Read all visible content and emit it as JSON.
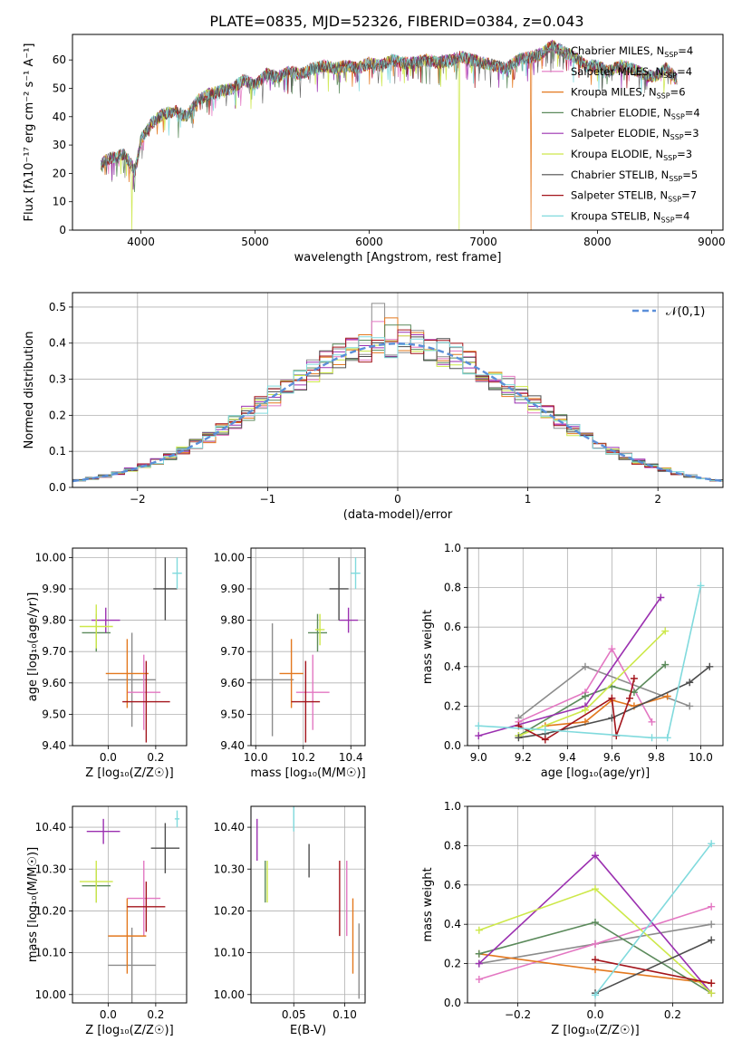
{
  "figure_title": "PLATE=0835, MJD=52326, FIBERID=0384, z=0.043",
  "models": [
    {
      "name": "Chabrier MILES",
      "nssp": "4",
      "color": "#8c8c8c"
    },
    {
      "name": "Salpeter MILES",
      "nssp": "4",
      "color": "#e377c2"
    },
    {
      "name": "Kroupa MILES",
      "nssp": "6",
      "color": "#e3781e"
    },
    {
      "name": "Chabrier ELODIE",
      "nssp": "4",
      "color": "#5b8a5b"
    },
    {
      "name": "Salpeter ELODIE",
      "nssp": "3",
      "color": "#9b30b0"
    },
    {
      "name": "Kroupa ELODIE",
      "nssp": "3",
      "color": "#cde84a"
    },
    {
      "name": "Chabrier STELIB",
      "nssp": "5",
      "color": "#4d4d4d"
    },
    {
      "name": "Salpeter STELIB",
      "nssp": "7",
      "color": "#a3141b"
    },
    {
      "name": "Kroupa STELIB",
      "nssp": "4",
      "color": "#80dadd"
    }
  ],
  "chart_data": [
    {
      "id": "spectrum",
      "type": "line",
      "xlabel": "wavelength [Angstrom, rest frame]",
      "ylabel": "Flux [fλ10⁻¹⁷ erg cm⁻² s⁻¹ A⁻¹]",
      "xlim": [
        3400,
        9100
      ],
      "ylim": [
        0,
        69
      ],
      "xticks": [
        4000,
        5000,
        6000,
        7000,
        8000,
        9000
      ],
      "yticks": [
        0,
        10,
        20,
        30,
        40,
        50,
        60
      ],
      "grid": false,
      "legend": "right",
      "x": [
        3650,
        3700,
        3800,
        3850,
        3900,
        3950,
        4000,
        4100,
        4200,
        4300,
        4400,
        4500,
        4600,
        4700,
        4800,
        4900,
        5000,
        5100,
        5200,
        5300,
        5400,
        5500,
        5600,
        5700,
        5800,
        5900,
        6000,
        6100,
        6200,
        6300,
        6400,
        6500,
        6600,
        6700,
        6800,
        6900,
        7000,
        7100,
        7200,
        7300,
        7400,
        7500,
        7600,
        7700,
        7800,
        7900,
        8000,
        8100,
        8200,
        8300,
        8400,
        8500,
        8600,
        8700
      ],
      "y": [
        23,
        25,
        26,
        27,
        24,
        21,
        32,
        38,
        41,
        42,
        40,
        46,
        48,
        49,
        50,
        53,
        51,
        55,
        54,
        56,
        55,
        57,
        58,
        57,
        58,
        57,
        59,
        58,
        60,
        59,
        59,
        60,
        59,
        60,
        61,
        60,
        59,
        58,
        57,
        60,
        61,
        62,
        65,
        63,
        61,
        58,
        58,
        56,
        58,
        57,
        55,
        54,
        57,
        53
      ],
      "dropouts": [
        {
          "x": 3920,
          "series": 5
        },
        {
          "x": 6790,
          "series": 5
        },
        {
          "x": 7420,
          "series": 2
        }
      ]
    },
    {
      "id": "residuals",
      "type": "histogram",
      "xlabel": "(data-model)/error",
      "ylabel": "Normed distribution",
      "xlim": [
        -2.5,
        2.5
      ],
      "ylim": [
        0,
        0.54
      ],
      "xticks": [
        -2,
        -1,
        0,
        1,
        2
      ],
      "yticks": [
        0.0,
        0.1,
        0.2,
        0.3,
        0.4,
        0.5
      ],
      "grid": true,
      "legend": "top-right",
      "reference_label": "𝒩(0,1)",
      "bin_edges_start": -2.5,
      "bin_width": 0.1,
      "peak_values": [
        0.51,
        0.46,
        0.47,
        0.45,
        0.43,
        0.42
      ]
    },
    {
      "id": "age_vs_Z",
      "type": "errorbar",
      "xlabel": "Z [log₁₀(Z/Z☉)]",
      "ylabel": "age  [log₁₀(age/yr)]",
      "xlim": [
        -0.15,
        0.33
      ],
      "ylim": [
        9.4,
        10.03
      ],
      "xticks": [
        0.0,
        0.2
      ],
      "yticks": [
        9.4,
        9.5,
        9.6,
        9.7,
        9.8,
        9.9,
        10.0
      ],
      "points": [
        {
          "model": 0,
          "x": 0.1,
          "y": 9.61,
          "xerr": 0.1,
          "yerr": 0.15
        },
        {
          "model": 1,
          "x": 0.15,
          "y": 9.57,
          "xerr": 0.07,
          "yerr": 0.12
        },
        {
          "model": 2,
          "x": 0.08,
          "y": 9.63,
          "xerr": 0.09,
          "yerr": 0.11
        },
        {
          "model": 3,
          "x": -0.05,
          "y": 9.76,
          "xerr": 0.06,
          "yerr": 0.06
        },
        {
          "model": 4,
          "x": -0.01,
          "y": 9.8,
          "xerr": 0.06,
          "yerr": 0.04
        },
        {
          "model": 5,
          "x": -0.05,
          "y": 9.78,
          "xerr": 0.07,
          "yerr": 0.07
        },
        {
          "model": 6,
          "x": 0.24,
          "y": 9.9,
          "xerr": 0.05,
          "yerr": 0.1
        },
        {
          "model": 7,
          "x": 0.16,
          "y": 9.54,
          "xerr": 0.1,
          "yerr": 0.13
        },
        {
          "model": 8,
          "x": 0.29,
          "y": 9.95,
          "xerr": 0.02,
          "yerr": 0.05
        }
      ]
    },
    {
      "id": "age_vs_mass",
      "type": "errorbar",
      "xlabel": "mass [log₁₀(M/M☉)]",
      "ylabel": "",
      "xlim": [
        9.98,
        10.46
      ],
      "ylim": [
        9.4,
        10.03
      ],
      "xticks": [
        10.0,
        10.2,
        10.4
      ],
      "yticks": [
        9.4,
        9.5,
        9.6,
        9.7,
        9.8,
        9.9,
        10.0
      ],
      "points": [
        {
          "model": 0,
          "x": 10.07,
          "y": 9.61,
          "xerr": 0.09,
          "yerr": 0.18
        },
        {
          "model": 1,
          "x": 10.24,
          "y": 9.57,
          "xerr": 0.07,
          "yerr": 0.12
        },
        {
          "model": 2,
          "x": 10.15,
          "y": 9.63,
          "xerr": 0.05,
          "yerr": 0.11
        },
        {
          "model": 3,
          "x": 10.26,
          "y": 9.76,
          "xerr": 0.04,
          "yerr": 0.06
        },
        {
          "model": 4,
          "x": 10.39,
          "y": 9.8,
          "xerr": 0.04,
          "yerr": 0.04
        },
        {
          "model": 5,
          "x": 10.27,
          "y": 9.77,
          "xerr": 0.02,
          "yerr": 0.05
        },
        {
          "model": 6,
          "x": 10.35,
          "y": 9.9,
          "xerr": 0.04,
          "yerr": 0.1
        },
        {
          "model": 7,
          "x": 10.21,
          "y": 9.54,
          "xerr": 0.06,
          "yerr": 0.13
        },
        {
          "model": 8,
          "x": 10.42,
          "y": 9.95,
          "xerr": 0.02,
          "yerr": 0.05
        }
      ]
    },
    {
      "id": "weight_vs_age",
      "type": "line",
      "xlabel": "age  [log₁₀(age/yr)]",
      "ylabel": "mass weight",
      "xlim": [
        8.95,
        10.1
      ],
      "ylim": [
        0,
        1
      ],
      "xticks": [
        9.0,
        9.2,
        9.4,
        9.6,
        9.8,
        10.0
      ],
      "yticks": [
        0.0,
        0.2,
        0.4,
        0.6,
        0.8,
        1.0
      ],
      "grid": true,
      "series": [
        {
          "model": 0,
          "x": [
            9.18,
            9.48,
            9.95
          ],
          "y": [
            0.14,
            0.4,
            0.2
          ]
        },
        {
          "model": 1,
          "x": [
            9.18,
            9.48,
            9.6,
            9.78
          ],
          "y": [
            0.12,
            0.27,
            0.49,
            0.12
          ]
        },
        {
          "model": 2,
          "x": [
            9.3,
            9.48,
            9.6,
            9.7,
            9.85
          ],
          "y": [
            0.1,
            0.12,
            0.23,
            0.2,
            0.25
          ]
        },
        {
          "model": 3,
          "x": [
            9.18,
            9.48,
            9.6,
            9.7,
            9.84
          ],
          "y": [
            0.05,
            0.25,
            0.3,
            0.27,
            0.41
          ]
        },
        {
          "model": 4,
          "x": [
            9.0,
            9.48,
            9.82
          ],
          "y": [
            0.05,
            0.2,
            0.75
          ]
        },
        {
          "model": 5,
          "x": [
            9.18,
            9.48,
            9.84
          ],
          "y": [
            0.05,
            0.18,
            0.58
          ]
        },
        {
          "model": 6,
          "x": [
            9.18,
            9.3,
            9.6,
            9.95,
            10.04
          ],
          "y": [
            0.04,
            0.06,
            0.14,
            0.32,
            0.4
          ]
        },
        {
          "model": 7,
          "x": [
            9.18,
            9.3,
            9.6,
            9.62,
            9.68,
            9.7
          ],
          "y": [
            0.1,
            0.03,
            0.24,
            0.05,
            0.24,
            0.34
          ]
        },
        {
          "model": 8,
          "x": [
            9.0,
            9.3,
            9.78,
            9.85,
            10.0
          ],
          "y": [
            0.1,
            0.08,
            0.04,
            0.04,
            0.81
          ]
        }
      ]
    },
    {
      "id": "mass_vs_Z",
      "type": "errorbar",
      "xlabel": "Z [log₁₀(Z/Z☉)]",
      "ylabel": "mass [log₁₀(M/M☉)]",
      "xlim": [
        -0.15,
        0.33
      ],
      "ylim": [
        9.98,
        10.45
      ],
      "xticks": [
        0.0,
        0.2
      ],
      "yticks": [
        10.0,
        10.1,
        10.2,
        10.3,
        10.4
      ],
      "points": [
        {
          "model": 0,
          "x": 0.1,
          "y": 10.07,
          "xerr": 0.1,
          "yerr": 0.09
        },
        {
          "model": 1,
          "x": 0.15,
          "y": 10.23,
          "xerr": 0.07,
          "yerr": 0.09
        },
        {
          "model": 2,
          "x": 0.08,
          "y": 10.14,
          "xerr": 0.08,
          "yerr": 0.09
        },
        {
          "model": 3,
          "x": -0.05,
          "y": 10.26,
          "xerr": 0.06,
          "yerr": 0.04
        },
        {
          "model": 4,
          "x": -0.02,
          "y": 10.39,
          "xerr": 0.07,
          "yerr": 0.03
        },
        {
          "model": 5,
          "x": -0.05,
          "y": 10.27,
          "xerr": 0.07,
          "yerr": 0.05
        },
        {
          "model": 6,
          "x": 0.24,
          "y": 10.35,
          "xerr": 0.06,
          "yerr": 0.06
        },
        {
          "model": 7,
          "x": 0.16,
          "y": 10.21,
          "xerr": 0.08,
          "yerr": 0.06
        },
        {
          "model": 8,
          "x": 0.29,
          "y": 10.42,
          "xerr": 0.01,
          "yerr": 0.02
        }
      ]
    },
    {
      "id": "mass_vs_ebv",
      "type": "errorbar",
      "xlabel": "E(B-V)",
      "ylabel": "",
      "xlim": [
        0.008,
        0.12
      ],
      "ylim": [
        9.98,
        10.45
      ],
      "xticks": [
        0.05,
        0.1
      ],
      "yticks": [
        10.0,
        10.1,
        10.2,
        10.3,
        10.4
      ],
      "points": [
        {
          "model": 0,
          "x": 0.114,
          "y": 10.08,
          "xerr": 0,
          "yerr": 0.09
        },
        {
          "model": 1,
          "x": 0.102,
          "y": 10.23,
          "xerr": 0,
          "yerr": 0.09
        },
        {
          "model": 2,
          "x": 0.108,
          "y": 10.14,
          "xerr": 0,
          "yerr": 0.09
        },
        {
          "model": 3,
          "x": 0.022,
          "y": 10.27,
          "xerr": 0,
          "yerr": 0.05
        },
        {
          "model": 4,
          "x": 0.014,
          "y": 10.37,
          "xerr": 0,
          "yerr": 0.05
        },
        {
          "model": 5,
          "x": 0.024,
          "y": 10.27,
          "xerr": 0,
          "yerr": 0.05
        },
        {
          "model": 6,
          "x": 0.065,
          "y": 10.32,
          "xerr": 0,
          "yerr": 0.04
        },
        {
          "model": 7,
          "x": 0.095,
          "y": 10.23,
          "xerr": 0,
          "yerr": 0.09
        },
        {
          "model": 8,
          "x": 0.05,
          "y": 10.42,
          "xerr": 0,
          "yerr": 0.03
        }
      ]
    },
    {
      "id": "weight_vs_Z",
      "type": "line",
      "xlabel": "Z [log₁₀(Z/Z☉)]",
      "ylabel": "mass weight",
      "xlim": [
        -0.33,
        0.33
      ],
      "ylim": [
        0,
        1
      ],
      "xticks": [
        -0.2,
        0.0,
        0.2
      ],
      "yticks": [
        0.0,
        0.2,
        0.4,
        0.6,
        0.8,
        1.0
      ],
      "grid": true,
      "series": [
        {
          "model": 0,
          "x": [
            -0.3,
            0.0,
            0.3
          ],
          "y": [
            0.2,
            0.3,
            0.4
          ]
        },
        {
          "model": 1,
          "x": [
            -0.3,
            0.0,
            0.3
          ],
          "y": [
            0.12,
            0.3,
            0.49
          ]
        },
        {
          "model": 2,
          "x": [
            -0.3,
            0.0,
            0.3
          ],
          "y": [
            0.25,
            0.17,
            0.1
          ]
        },
        {
          "model": 3,
          "x": [
            -0.3,
            0.0,
            0.3
          ],
          "y": [
            0.25,
            0.41,
            0.05
          ]
        },
        {
          "model": 4,
          "x": [
            -0.3,
            0.0,
            0.3
          ],
          "y": [
            0.2,
            0.75,
            0.05
          ]
        },
        {
          "model": 5,
          "x": [
            -0.3,
            0.0,
            0.3
          ],
          "y": [
            0.37,
            0.58,
            0.05
          ]
        },
        {
          "model": 6,
          "x": [
            0.0,
            0.3
          ],
          "y": [
            0.05,
            0.32
          ]
        },
        {
          "model": 7,
          "x": [
            0.0,
            0.3
          ],
          "y": [
            0.22,
            0.1
          ]
        },
        {
          "model": 8,
          "x": [
            0.0,
            0.3
          ],
          "y": [
            0.04,
            0.81
          ]
        }
      ]
    }
  ]
}
